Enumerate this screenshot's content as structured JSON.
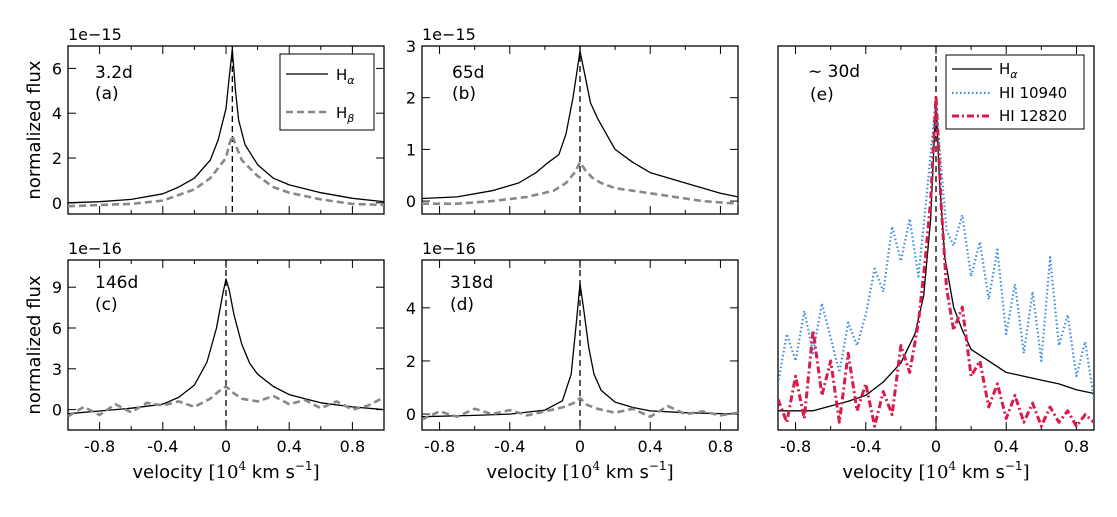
{
  "figure": {
    "xlabel_text": "velocity",
    "xlabel_unit_open": "[10",
    "xlabel_unit_exp": "4",
    "xlabel_unit_mid": " km s",
    "xlabel_unit_sup": "−1",
    "xlabel_unit_close": "]",
    "ylabel": "normalized flux"
  },
  "legend_ab": {
    "items": [
      {
        "label": "H",
        "sub": "α",
        "style": "solid",
        "color": "#000000"
      },
      {
        "label": "H",
        "sub": "β",
        "style": "dashed",
        "color": "#888888"
      }
    ]
  },
  "legend_e": {
    "items": [
      {
        "label": "H",
        "sub": "α",
        "style": "solid",
        "color": "#000000"
      },
      {
        "label": "HI 10940",
        "sub": "",
        "style": "dotted",
        "color": "#3a8ee6"
      },
      {
        "label": "HI 12820",
        "sub": "",
        "style": "dashdot",
        "color": "#d81b4a"
      }
    ]
  },
  "chart_data": [
    {
      "id": "a",
      "type": "line",
      "epoch": "3.2d",
      "panel_label": "(a)",
      "scale_label": "1e−15",
      "xlim": [
        -1.0,
        1.0
      ],
      "ylim": [
        -0.5,
        7.0
      ],
      "xticks": [
        -0.8,
        -0.4,
        0,
        0.4,
        0.8
      ],
      "yticks": [
        0,
        2,
        4,
        6
      ],
      "ytick_labels": [
        "0",
        "2",
        "4",
        "6"
      ],
      "show_xticklabels": false,
      "show_ylabel": true,
      "vline": 0.04,
      "series": [
        {
          "name": "Hα",
          "style": "solid",
          "color": "#000000",
          "x": [
            -1.0,
            -0.8,
            -0.6,
            -0.4,
            -0.3,
            -0.2,
            -0.1,
            -0.05,
            0.0,
            0.02,
            0.04,
            0.06,
            0.08,
            0.12,
            0.2,
            0.3,
            0.4,
            0.6,
            0.8,
            1.0
          ],
          "y": [
            0.0,
            0.05,
            0.15,
            0.4,
            0.7,
            1.1,
            1.9,
            2.8,
            4.2,
            5.6,
            6.85,
            5.0,
            3.7,
            2.6,
            1.7,
            1.1,
            0.8,
            0.45,
            0.2,
            0.05
          ]
        },
        {
          "name": "Hβ",
          "style": "dashed",
          "color": "#888888",
          "x": [
            -1.0,
            -0.8,
            -0.6,
            -0.4,
            -0.2,
            -0.1,
            0.0,
            0.02,
            0.04,
            0.06,
            0.1,
            0.2,
            0.3,
            0.4,
            0.6,
            0.8,
            1.0
          ],
          "y": [
            -0.15,
            -0.1,
            -0.05,
            0.1,
            0.6,
            1.1,
            2.0,
            2.6,
            3.0,
            2.6,
            1.9,
            1.2,
            0.7,
            0.45,
            0.15,
            -0.05,
            -0.1
          ]
        }
      ]
    },
    {
      "id": "b",
      "type": "line",
      "epoch": "65d",
      "panel_label": "(b)",
      "scale_label": "1e−15",
      "xlim": [
        -0.9,
        0.9
      ],
      "ylim": [
        -0.25,
        3.0
      ],
      "xticks": [
        -0.8,
        -0.4,
        0,
        0.4,
        0.8
      ],
      "yticks": [
        0,
        1,
        2,
        3
      ],
      "ytick_labels": [
        "0",
        "1",
        "2",
        "3"
      ],
      "show_xticklabels": false,
      "show_ylabel": false,
      "vline": 0.0,
      "series": [
        {
          "name": "Hα",
          "style": "solid",
          "color": "#000000",
          "x": [
            -0.9,
            -0.7,
            -0.5,
            -0.35,
            -0.25,
            -0.18,
            -0.12,
            -0.08,
            -0.04,
            0.0,
            0.03,
            0.06,
            0.1,
            0.15,
            0.2,
            0.3,
            0.4,
            0.6,
            0.8,
            0.9
          ],
          "y": [
            0.05,
            0.08,
            0.2,
            0.35,
            0.55,
            0.75,
            0.9,
            1.3,
            2.0,
            2.9,
            2.4,
            1.9,
            1.6,
            1.3,
            1.0,
            0.75,
            0.55,
            0.35,
            0.15,
            0.08
          ]
        },
        {
          "name": "Hβ",
          "style": "dashed",
          "color": "#888888",
          "x": [
            -0.9,
            -0.7,
            -0.5,
            -0.3,
            -0.15,
            -0.08,
            -0.03,
            0.0,
            0.03,
            0.07,
            0.12,
            0.2,
            0.3,
            0.5,
            0.7,
            0.9
          ],
          "y": [
            -0.05,
            -0.05,
            0.0,
            0.08,
            0.2,
            0.35,
            0.55,
            0.75,
            0.6,
            0.45,
            0.35,
            0.25,
            0.2,
            0.1,
            0.0,
            -0.05
          ]
        }
      ]
    },
    {
      "id": "c",
      "type": "line",
      "epoch": "146d",
      "panel_label": "(c)",
      "scale_label": "1e−16",
      "xlim": [
        -1.0,
        1.0
      ],
      "ylim": [
        -1.5,
        11.0
      ],
      "xticks": [
        -0.8,
        -0.4,
        0,
        0.4,
        0.8
      ],
      "xtick_labels": [
        "-0.8",
        "-0.4",
        "0",
        "0.4",
        "0.8"
      ],
      "yticks": [
        0,
        3,
        6,
        9
      ],
      "ytick_labels": [
        "0",
        "3",
        "6",
        "9"
      ],
      "show_xticklabels": true,
      "show_ylabel": true,
      "vline": 0.0,
      "series": [
        {
          "name": "Hα",
          "style": "solid",
          "color": "#000000",
          "x": [
            -1.0,
            -0.8,
            -0.6,
            -0.4,
            -0.3,
            -0.2,
            -0.12,
            -0.06,
            -0.02,
            0.0,
            0.02,
            0.05,
            0.1,
            0.15,
            0.2,
            0.3,
            0.4,
            0.5,
            0.6,
            0.8,
            1.0
          ],
          "y": [
            -0.3,
            -0.1,
            0.1,
            0.4,
            0.9,
            1.8,
            3.5,
            6.0,
            8.5,
            9.6,
            8.8,
            7.0,
            4.8,
            3.4,
            2.6,
            1.7,
            1.1,
            0.8,
            0.5,
            0.2,
            0.0
          ]
        },
        {
          "name": "Hβ",
          "style": "dashed",
          "color": "#888888",
          "x": [
            -1.0,
            -0.9,
            -0.8,
            -0.7,
            -0.6,
            -0.5,
            -0.4,
            -0.3,
            -0.2,
            -0.1,
            -0.05,
            0.0,
            0.05,
            0.1,
            0.2,
            0.3,
            0.4,
            0.5,
            0.6,
            0.7,
            0.8,
            0.9,
            1.0
          ],
          "y": [
            -0.5,
            0.2,
            -0.4,
            0.4,
            -0.2,
            0.5,
            0.3,
            0.6,
            0.2,
            0.8,
            1.3,
            1.7,
            1.2,
            0.8,
            0.6,
            1.0,
            0.4,
            0.7,
            0.1,
            0.6,
            0.0,
            0.3,
            0.9
          ]
        }
      ]
    },
    {
      "id": "d",
      "type": "line",
      "epoch": "318d",
      "panel_label": "(d)",
      "scale_label": "1e−16",
      "xlim": [
        -0.9,
        0.9
      ],
      "ylim": [
        -0.6,
        5.8
      ],
      "xticks": [
        -0.8,
        -0.4,
        0,
        0.4,
        0.8
      ],
      "xtick_labels": [
        "-0.8",
        "-0.4",
        "0",
        "0.4",
        "0.8"
      ],
      "yticks": [
        0,
        2,
        4
      ],
      "ytick_labels": [
        "0",
        "2",
        "4"
      ],
      "show_xticklabels": true,
      "show_ylabel": false,
      "vline": 0.0,
      "series": [
        {
          "name": "Hα",
          "style": "solid",
          "color": "#000000",
          "x": [
            -0.9,
            -0.6,
            -0.4,
            -0.2,
            -0.1,
            -0.05,
            -0.02,
            0.0,
            0.02,
            0.05,
            0.08,
            0.12,
            0.2,
            0.3,
            0.4,
            0.6,
            0.9
          ],
          "y": [
            -0.1,
            -0.05,
            0.0,
            0.15,
            0.5,
            1.5,
            3.5,
            4.9,
            4.0,
            2.5,
            1.5,
            0.9,
            0.45,
            0.25,
            0.12,
            0.05,
            0.0
          ]
        },
        {
          "name": "Hβ",
          "style": "dashed",
          "color": "#888888",
          "x": [
            -0.9,
            -0.8,
            -0.7,
            -0.6,
            -0.5,
            -0.4,
            -0.3,
            -0.2,
            -0.1,
            -0.04,
            0.0,
            0.04,
            0.1,
            0.2,
            0.3,
            0.4,
            0.5,
            0.6,
            0.7,
            0.8,
            0.9
          ],
          "y": [
            -0.2,
            0.1,
            -0.1,
            0.2,
            0.0,
            0.15,
            -0.05,
            0.1,
            0.25,
            0.4,
            0.6,
            0.35,
            0.2,
            0.05,
            0.2,
            -0.1,
            0.3,
            0.0,
            0.1,
            -0.05,
            0.05
          ]
        }
      ]
    },
    {
      "id": "e",
      "type": "line",
      "epoch": "∼ 30d",
      "panel_label": "(e)",
      "scale_label": "",
      "xlim": [
        -0.9,
        0.9
      ],
      "ylim": [
        0.0,
        10.0
      ],
      "xticks": [
        -0.8,
        -0.4,
        0,
        0.4,
        0.8
      ],
      "xtick_labels": [
        "-0.8",
        "-0.4",
        "0",
        "0.4",
        "0.8"
      ],
      "yticks": [],
      "ytick_labels": [],
      "show_xticklabels": true,
      "show_ylabel": false,
      "vline": 0.0,
      "series": [
        {
          "name": "Hα",
          "style": "solid",
          "color": "#000000",
          "x": [
            -0.9,
            -0.7,
            -0.5,
            -0.4,
            -0.3,
            -0.2,
            -0.12,
            -0.07,
            -0.03,
            0.0,
            0.02,
            0.05,
            0.1,
            0.15,
            0.2,
            0.3,
            0.4,
            0.5,
            0.6,
            0.7,
            0.8,
            0.9
          ],
          "y": [
            0.5,
            0.5,
            0.75,
            0.9,
            1.25,
            1.75,
            2.5,
            3.5,
            5.5,
            8.6,
            6.5,
            4.5,
            3.2,
            2.6,
            2.1,
            1.8,
            1.5,
            1.4,
            1.3,
            1.2,
            1.05,
            0.95
          ]
        },
        {
          "name": "HI 10940",
          "style": "dotted",
          "color": "#3a8ee6",
          "x": [
            -0.9,
            -0.85,
            -0.8,
            -0.75,
            -0.7,
            -0.65,
            -0.6,
            -0.55,
            -0.5,
            -0.45,
            -0.4,
            -0.35,
            -0.3,
            -0.25,
            -0.2,
            -0.15,
            -0.1,
            -0.06,
            -0.03,
            0.0,
            0.03,
            0.06,
            0.1,
            0.15,
            0.2,
            0.25,
            0.3,
            0.35,
            0.4,
            0.45,
            0.5,
            0.55,
            0.6,
            0.65,
            0.7,
            0.75,
            0.8,
            0.85,
            0.9
          ],
          "y": [
            1.2,
            2.5,
            1.8,
            3.1,
            2.0,
            3.3,
            2.4,
            1.5,
            2.8,
            2.2,
            3.0,
            4.2,
            3.6,
            5.3,
            4.4,
            5.5,
            4.0,
            5.8,
            7.2,
            8.6,
            6.8,
            5.2,
            4.8,
            5.6,
            4.0,
            4.9,
            3.4,
            4.7,
            2.5,
            3.8,
            2.0,
            3.6,
            1.8,
            4.5,
            2.2,
            3.0,
            1.4,
            2.3,
            0.8
          ]
        },
        {
          "name": "HI 12820",
          "style": "dashdot",
          "color": "#d81b4a",
          "x": [
            -0.9,
            -0.85,
            -0.8,
            -0.75,
            -0.7,
            -0.65,
            -0.6,
            -0.55,
            -0.5,
            -0.45,
            -0.4,
            -0.35,
            -0.3,
            -0.25,
            -0.2,
            -0.15,
            -0.1,
            -0.06,
            -0.03,
            0.0,
            0.03,
            0.06,
            0.1,
            0.15,
            0.2,
            0.25,
            0.3,
            0.35,
            0.4,
            0.45,
            0.5,
            0.55,
            0.6,
            0.65,
            0.7,
            0.75,
            0.8,
            0.85,
            0.9
          ],
          "y": [
            0.8,
            0.2,
            1.4,
            0.3,
            2.6,
            0.9,
            1.8,
            0.2,
            2.0,
            0.5,
            1.2,
            0.1,
            1.0,
            0.4,
            2.2,
            1.5,
            2.8,
            4.5,
            6.0,
            8.7,
            5.8,
            3.7,
            2.6,
            3.2,
            1.4,
            1.8,
            0.6,
            1.2,
            0.3,
            0.9,
            0.2,
            0.7,
            0.1,
            0.6,
            0.2,
            0.5,
            0.1,
            0.4,
            0.2
          ]
        }
      ]
    }
  ]
}
